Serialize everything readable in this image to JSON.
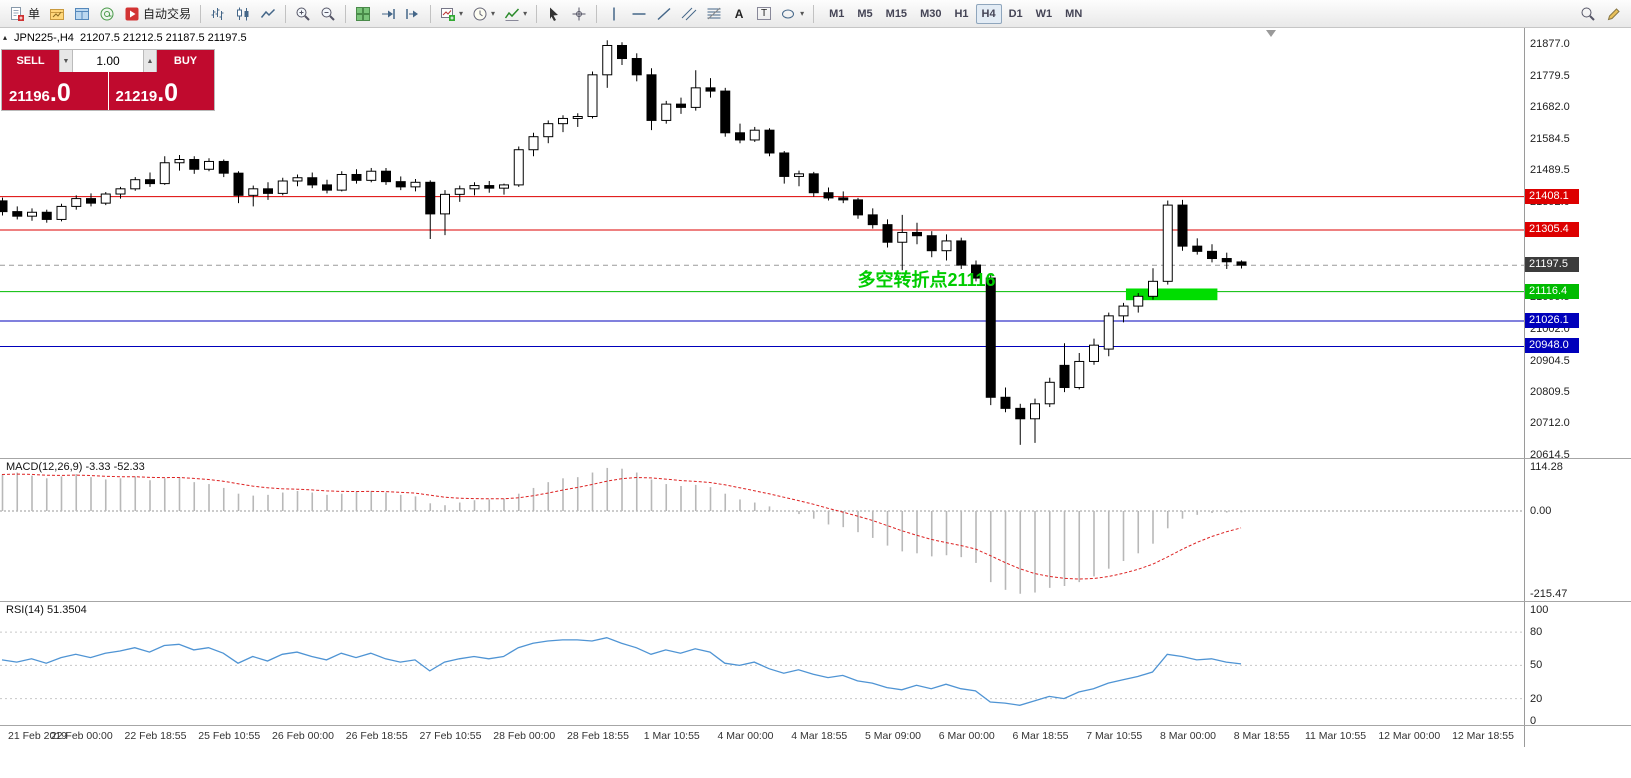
{
  "toolbar": {
    "new_order_label": "单",
    "autotrade_label": "自动交易",
    "text_tool_label": "A",
    "label_tool_label": "T",
    "timeframes": [
      "M1",
      "M5",
      "M15",
      "M30",
      "H1",
      "H4",
      "D1",
      "W1",
      "MN"
    ],
    "active_timeframe": "H4"
  },
  "chart_header": {
    "symbol": "JPN225-,H4",
    "ohlc": "21207.5 21212.5 21187.5 21197.5"
  },
  "trade_panel": {
    "sell_label": "SELL",
    "buy_label": "BUY",
    "volume": "1.00",
    "sell_price": "21196",
    "sell_price_big": ".0",
    "buy_price": "21219",
    "buy_price_big": ".0"
  },
  "macd_panel": {
    "label": "MACD(12,26,9) -3.33 -52.33"
  },
  "rsi_panel": {
    "label": "RSI(14) 51.3504"
  },
  "colors": {
    "buy_sell_red": "#c00a2e",
    "level_red": "#dd0000",
    "level_green": "#00bb00",
    "level_blue": "#0000bb",
    "current_price_box": "#3c3c3c",
    "annotation_green": "#00cc00",
    "highlight_green": "#00dd00",
    "macd_bars": "#b8b8b8",
    "macd_signal": "#dd2222",
    "rsi_line": "#4f94d4"
  },
  "chart_data": {
    "type": "candlestick",
    "symbol": "JPN225",
    "timeframe": "H4",
    "ohlc_current": [
      21207.5,
      21212.5,
      21187.5,
      21197.5
    ],
    "price_ticks": [
      {
        "v": 21877.0,
        "t": "21877.0"
      },
      {
        "v": 21779.5,
        "t": "21779.5"
      },
      {
        "v": 21682.0,
        "t": "21682.0"
      },
      {
        "v": 21584.5,
        "t": "21584.5"
      },
      {
        "v": 21489.5,
        "t": "21489.5"
      },
      {
        "v": 21392.0,
        "t": "21392.0"
      },
      {
        "v": 21099.5,
        "t": "21099.5"
      },
      {
        "v": 21002.0,
        "t": "21002.0"
      },
      {
        "v": 20904.5,
        "t": "20904.5"
      },
      {
        "v": 20809.5,
        "t": "20809.5"
      },
      {
        "v": 20712.0,
        "t": "20712.0"
      },
      {
        "v": 20614.5,
        "t": "20614.5"
      }
    ],
    "levels": [
      {
        "price": 21408.1,
        "label": "21408.1",
        "color": "#dd0000",
        "style": "solid"
      },
      {
        "price": 21305.4,
        "label": "21305.4",
        "color": "#dd0000",
        "style": "solid"
      },
      {
        "price": 21197.5,
        "label": "21197.5",
        "color": "#9a9a9a",
        "box_color": "#3c3c3c",
        "style": "dashed"
      },
      {
        "price": 21116.4,
        "label": "21116.4",
        "color": "#00bb00",
        "style": "solid"
      },
      {
        "price": 21026.1,
        "label": "21026.1",
        "color": "#0000bb",
        "style": "solid"
      },
      {
        "price": 20948.0,
        "label": "20948.0",
        "color": "#0000bb",
        "style": "solid"
      }
    ],
    "highlight_rect": {
      "index_start": 76.2,
      "index_end": 82.4,
      "price_top": 21126,
      "price_bottom": 21090,
      "color": "#00dd00"
    },
    "annotation": {
      "text": "多空转折点21116",
      "index": 58,
      "price": 21168,
      "color": "#00cc00"
    },
    "candles": [
      [
        21395,
        21405,
        21350,
        21362
      ],
      [
        21362,
        21378,
        21338,
        21348
      ],
      [
        21348,
        21372,
        21334,
        21360
      ],
      [
        21360,
        21368,
        21328,
        21338
      ],
      [
        21338,
        21386,
        21332,
        21378
      ],
      [
        21378,
        21412,
        21368,
        21402
      ],
      [
        21402,
        21418,
        21378,
        21388
      ],
      [
        21388,
        21422,
        21382,
        21416
      ],
      [
        21416,
        21438,
        21402,
        21432
      ],
      [
        21432,
        21468,
        21426,
        21460
      ],
      [
        21460,
        21482,
        21438,
        21448
      ],
      [
        21448,
        21532,
        21444,
        21512
      ],
      [
        21512,
        21536,
        21488,
        21522
      ],
      [
        21522,
        21532,
        21478,
        21492
      ],
      [
        21492,
        21526,
        21486,
        21516
      ],
      [
        21516,
        21522,
        21468,
        21480
      ],
      [
        21480,
        21486,
        21388,
        21412
      ],
      [
        21412,
        21442,
        21378,
        21432
      ],
      [
        21432,
        21452,
        21398,
        21418
      ],
      [
        21418,
        21466,
        21412,
        21456
      ],
      [
        21456,
        21476,
        21440,
        21466
      ],
      [
        21466,
        21482,
        21434,
        21444
      ],
      [
        21444,
        21460,
        21418,
        21428
      ],
      [
        21428,
        21486,
        21424,
        21476
      ],
      [
        21476,
        21492,
        21448,
        21458
      ],
      [
        21458,
        21496,
        21452,
        21486
      ],
      [
        21486,
        21496,
        21444,
        21454
      ],
      [
        21454,
        21470,
        21428,
        21438
      ],
      [
        21438,
        21462,
        21424,
        21452
      ],
      [
        21452,
        21458,
        21278,
        21355
      ],
      [
        21355,
        21428,
        21290,
        21415
      ],
      [
        21415,
        21442,
        21392,
        21432
      ],
      [
        21432,
        21452,
        21412,
        21442
      ],
      [
        21442,
        21456,
        21420,
        21434
      ],
      [
        21434,
        21448,
        21414,
        21444
      ],
      [
        21444,
        21562,
        21438,
        21552
      ],
      [
        21552,
        21604,
        21532,
        21592
      ],
      [
        21592,
        21642,
        21572,
        21632
      ],
      [
        21632,
        21658,
        21606,
        21648
      ],
      [
        21648,
        21664,
        21622,
        21654
      ],
      [
        21654,
        21792,
        21648,
        21782
      ],
      [
        21782,
        21888,
        21742,
        21872
      ],
      [
        21872,
        21882,
        21812,
        21832
      ],
      [
        21832,
        21848,
        21762,
        21782
      ],
      [
        21782,
        21802,
        21612,
        21642
      ],
      [
        21642,
        21702,
        21632,
        21692
      ],
      [
        21692,
        21712,
        21662,
        21682
      ],
      [
        21682,
        21796,
        21672,
        21742
      ],
      [
        21742,
        21772,
        21712,
        21732
      ],
      [
        21732,
        21742,
        21592,
        21604
      ],
      [
        21604,
        21632,
        21572,
        21582
      ],
      [
        21582,
        21622,
        21576,
        21612
      ],
      [
        21612,
        21618,
        21532,
        21542
      ],
      [
        21542,
        21548,
        21448,
        21470
      ],
      [
        21470,
        21488,
        21440,
        21478
      ],
      [
        21478,
        21484,
        21408,
        21420
      ],
      [
        21420,
        21436,
        21396,
        21404
      ],
      [
        21404,
        21424,
        21388,
        21398
      ],
      [
        21398,
        21404,
        21340,
        21352
      ],
      [
        21352,
        21372,
        21310,
        21322
      ],
      [
        21322,
        21338,
        21252,
        21268
      ],
      [
        21268,
        21352,
        21182,
        21298
      ],
      [
        21298,
        21328,
        21262,
        21288
      ],
      [
        21288,
        21302,
        21222,
        21242
      ],
      [
        21242,
        21292,
        21212,
        21272
      ],
      [
        21272,
        21282,
        21186,
        21198
      ],
      [
        21198,
        21212,
        21148,
        21158
      ],
      [
        21158,
        21168,
        20768,
        20792
      ],
      [
        20792,
        20822,
        20746,
        20758
      ],
      [
        20758,
        20772,
        20646,
        20726
      ],
      [
        20726,
        20788,
        20652,
        20772
      ],
      [
        20772,
        20852,
        20762,
        20838
      ],
      [
        20890,
        20958,
        20808,
        20822
      ],
      [
        20822,
        20928,
        20816,
        20902
      ],
      [
        20902,
        20972,
        20892,
        20952
      ],
      [
        20940,
        21052,
        20918,
        21042
      ],
      [
        21042,
        21082,
        21022,
        21072
      ],
      [
        21072,
        21112,
        21052,
        21102
      ],
      [
        21102,
        21188,
        21092,
        21148
      ],
      [
        21148,
        21396,
        21138,
        21382
      ],
      [
        21382,
        21398,
        21242,
        21256
      ],
      [
        21256,
        21280,
        21230,
        21240
      ],
      [
        21240,
        21262,
        21206,
        21218
      ],
      [
        21218,
        21236,
        21186,
        21208
      ],
      [
        21207.5,
        21212.5,
        21187.5,
        21197.5
      ]
    ],
    "macd": {
      "params": "12,26,9",
      "current_macd": -3.33,
      "current_signal": -52.33,
      "axis_ticks": [
        {
          "v": 114.28,
          "t": "114.28"
        },
        {
          "v": 0,
          "t": "0.00"
        },
        {
          "v": -215.47,
          "t": "-215.47"
        }
      ],
      "values": [
        95,
        100,
        92,
        85,
        90,
        96,
        88,
        82,
        85,
        90,
        80,
        85,
        88,
        75,
        70,
        60,
        45,
        40,
        42,
        48,
        52,
        48,
        42,
        45,
        50,
        52,
        48,
        42,
        38,
        20,
        15,
        22,
        28,
        30,
        32,
        45,
        60,
        75,
        85,
        88,
        100,
        112,
        110,
        100,
        82,
        70,
        65,
        68,
        62,
        45,
        30,
        22,
        12,
        0,
        -8,
        -20,
        -35,
        -42,
        -55,
        -70,
        -90,
        -105,
        -110,
        -118,
        -115,
        -120,
        -135,
        -185,
        -205,
        -215,
        -212,
        -200,
        -195,
        -185,
        -170,
        -150,
        -130,
        -110,
        -85,
        -45,
        -20,
        -10,
        -5,
        -4,
        -3.33
      ]
    },
    "rsi": {
      "period": 14,
      "current": 51.3504,
      "axis_ticks": [
        {
          "v": 100,
          "t": "100"
        },
        {
          "v": 80,
          "t": "80"
        },
        {
          "v": 50,
          "t": "50"
        },
        {
          "v": 20,
          "t": "20"
        },
        {
          "v": 0,
          "t": "0"
        }
      ],
      "levels": [
        80,
        50,
        20
      ],
      "values": [
        55,
        53,
        56,
        52,
        57,
        60,
        57,
        61,
        63,
        66,
        62,
        68,
        69,
        64,
        66,
        61,
        52,
        58,
        54,
        60,
        62,
        58,
        55,
        61,
        57,
        61,
        56,
        53,
        55,
        45,
        53,
        56,
        58,
        56,
        58,
        66,
        70,
        72,
        73,
        73,
        72,
        75,
        70,
        66,
        60,
        64,
        61,
        65,
        62,
        52,
        50,
        53,
        47,
        43,
        46,
        42,
        39,
        41,
        36,
        34,
        30,
        28,
        32,
        29,
        33,
        29,
        27,
        17,
        16,
        14,
        18,
        22,
        20,
        26,
        29,
        34,
        37,
        40,
        44,
        60,
        58,
        55,
        56,
        53,
        51.35
      ]
    },
    "time_labels": [
      "21 Feb 2019",
      "22 Feb 00:00",
      "22 Feb 18:55",
      "25 Feb 10:55",
      "26 Feb 00:00",
      "26 Feb 18:55",
      "27 Feb 10:55",
      "28 Feb 00:00",
      "28 Feb 18:55",
      "1 Mar 10:55",
      "4 Mar 00:00",
      "4 Mar 18:55",
      "5 Mar 09:00",
      "6 Mar 00:00",
      "6 Mar 18:55",
      "7 Mar 10:55",
      "8 Mar 00:00",
      "8 Mar 18:55",
      "11 Mar 10:55",
      "12 Mar 00:00",
      "12 Mar 18:55"
    ]
  }
}
